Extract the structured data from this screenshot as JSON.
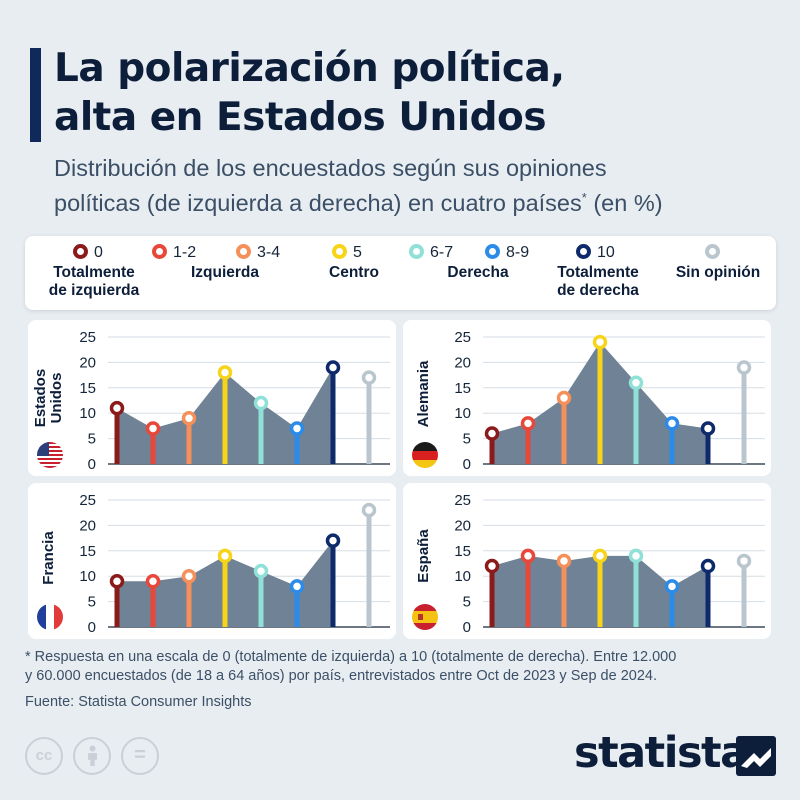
{
  "header": {
    "title_lines": [
      "La polarización política,",
      "alta en Estados Unidos"
    ],
    "subtitle_line1": "Distribución de los encuestados según sus opiniones",
    "subtitle_line2_main": "políticas (de izquierda a derecha) en cuatro países",
    "subtitle_line2_sup": "*",
    "subtitle_line2_end": " (en %)"
  },
  "legend": {
    "items": [
      {
        "label": "0",
        "color": "#8b1a1a"
      },
      {
        "label": "1-2",
        "color": "#e8473a"
      },
      {
        "label": "3-4",
        "color": "#f5905a"
      },
      {
        "label": "5",
        "color": "#f7d418"
      },
      {
        "label": "6-7",
        "color": "#8fe0d6"
      },
      {
        "label": "8-9",
        "color": "#2b8be8"
      },
      {
        "label": "10",
        "color": "#0f2a6a"
      },
      {
        "label": "",
        "color": "#b9c6cd"
      }
    ],
    "descriptions": {
      "left_1": "Totalmente",
      "left_2": "de izquierda",
      "left": "Izquierda",
      "center": "Centro",
      "right": "Derecha",
      "right_1": "Totalmente",
      "right_2": "de derecha",
      "none": "Sin opinión"
    }
  },
  "chart_data": [
    {
      "type": "area",
      "country": [
        "Estados",
        "Unidos"
      ],
      "flag": "us-flag-icon",
      "categories": [
        "0",
        "1-2",
        "3-4",
        "5",
        "6-7",
        "8-9",
        "10"
      ],
      "values": [
        11,
        7,
        9,
        18,
        12,
        7,
        19
      ],
      "no_opinion": 17,
      "ylim": [
        0,
        25
      ],
      "yticks": [
        0,
        5,
        10,
        15,
        20,
        25
      ]
    },
    {
      "type": "area",
      "country": [
        "Alemania"
      ],
      "flag": "de-flag-icon",
      "categories": [
        "0",
        "1-2",
        "3-4",
        "5",
        "6-7",
        "8-9",
        "10"
      ],
      "values": [
        6,
        8,
        13,
        24,
        16,
        8,
        7
      ],
      "no_opinion": 19,
      "ylim": [
        0,
        25
      ],
      "yticks": [
        0,
        5,
        10,
        15,
        20,
        25
      ]
    },
    {
      "type": "area",
      "country": [
        "Francia"
      ],
      "flag": "fr-flag-icon",
      "categories": [
        "0",
        "1-2",
        "3-4",
        "5",
        "6-7",
        "8-9",
        "10"
      ],
      "values": [
        9,
        9,
        10,
        14,
        11,
        8,
        17
      ],
      "no_opinion": 23,
      "ylim": [
        0,
        25
      ],
      "yticks": [
        0,
        5,
        10,
        15,
        20,
        25
      ]
    },
    {
      "type": "area",
      "country": [
        "España"
      ],
      "flag": "es-flag-icon",
      "categories": [
        "0",
        "1-2",
        "3-4",
        "5",
        "6-7",
        "8-9",
        "10"
      ],
      "values": [
        12,
        14,
        13,
        14,
        14,
        8,
        12
      ],
      "no_opinion": 13,
      "ylim": [
        0,
        25
      ],
      "yticks": [
        0,
        5,
        10,
        15,
        20,
        25
      ]
    }
  ],
  "footer": {
    "footnote_line1": "* Respuesta en una escala de 0 (totalmente de izquierda) a 10 (totalmente de derecha). Entre 12.000",
    "footnote_line2": "y 60.000 encuestados (de 18 a 64 años) por país, entrevistados entre Oct de 2023 y Sep de 2024.",
    "source": "Fuente: Statista Consumer Insights",
    "brand": "statista",
    "cc_label": "cc",
    "eq_label": "="
  },
  "colors": {
    "area": "#6f8296",
    "background": "#e8edf2",
    "panel": "#ffffff",
    "title": "#0d1e3a"
  }
}
